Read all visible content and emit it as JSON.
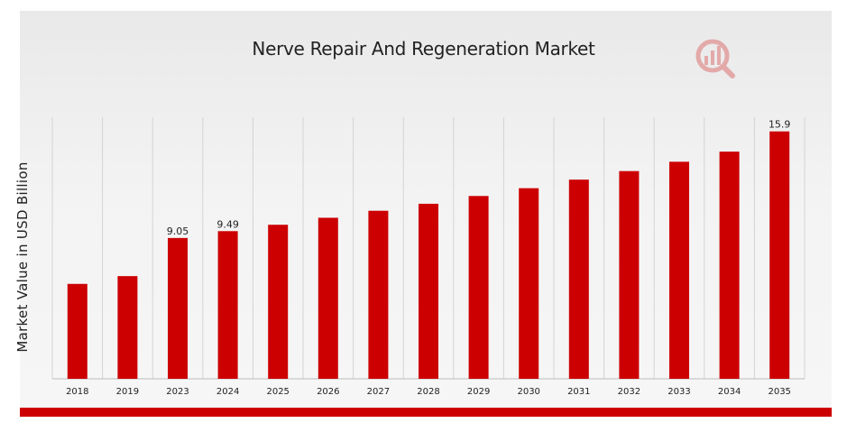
{
  "chart_data": {
    "type": "bar",
    "title": "Nerve Repair And Regeneration Market",
    "xlabel": "",
    "ylabel": "Market Value in USD Billion",
    "categories": [
      "2018",
      "2019",
      "2023",
      "2024",
      "2025",
      "2026",
      "2027",
      "2028",
      "2029",
      "2030",
      "2031",
      "2032",
      "2033",
      "2034",
      "2035"
    ],
    "values": [
      6.1,
      6.6,
      9.05,
      9.49,
      9.9,
      10.35,
      10.8,
      11.25,
      11.75,
      12.25,
      12.8,
      13.35,
      13.95,
      14.6,
      15.9
    ],
    "data_labels": {
      "2023": "9.05",
      "2024": "9.49",
      "2035": "15.9"
    },
    "ylim": [
      0,
      17.1
    ],
    "grid": "vertical",
    "legend": "none",
    "colors": {
      "bar": "#cc0000",
      "grid": "#d4d4d4",
      "band": "#cc0000"
    }
  },
  "logo": {
    "icon": "analytics-magnifier-logo",
    "color": "#d94f4f"
  }
}
